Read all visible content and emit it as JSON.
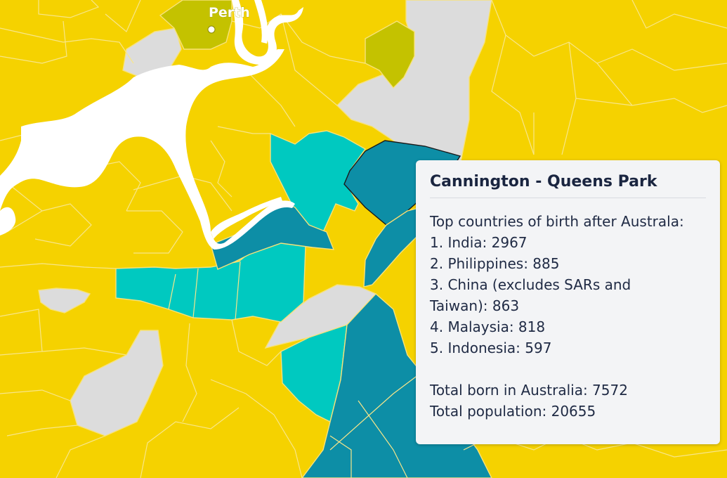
{
  "map": {
    "place_label": "Perth",
    "colors": {
      "background": "#f5d200",
      "olive": "#c4c200",
      "grey": "#dcdcdc",
      "teal": "#00c9c0",
      "dark_teal": "#0d8ea6",
      "river": "#ffffff"
    }
  },
  "tooltip": {
    "title": "Cannington - Queens Park",
    "heading": "Top countries of birth after Australa:",
    "items": [
      "1. India: 2967",
      "2. Philippines: 885",
      "3. China (excludes SARs and",
      "Taiwan): 863",
      "4. Malaysia: 818",
      "5. Indonesia: 597"
    ],
    "total_born": "Total born in Australia: 7572",
    "total_population": "Total population: 20655"
  }
}
